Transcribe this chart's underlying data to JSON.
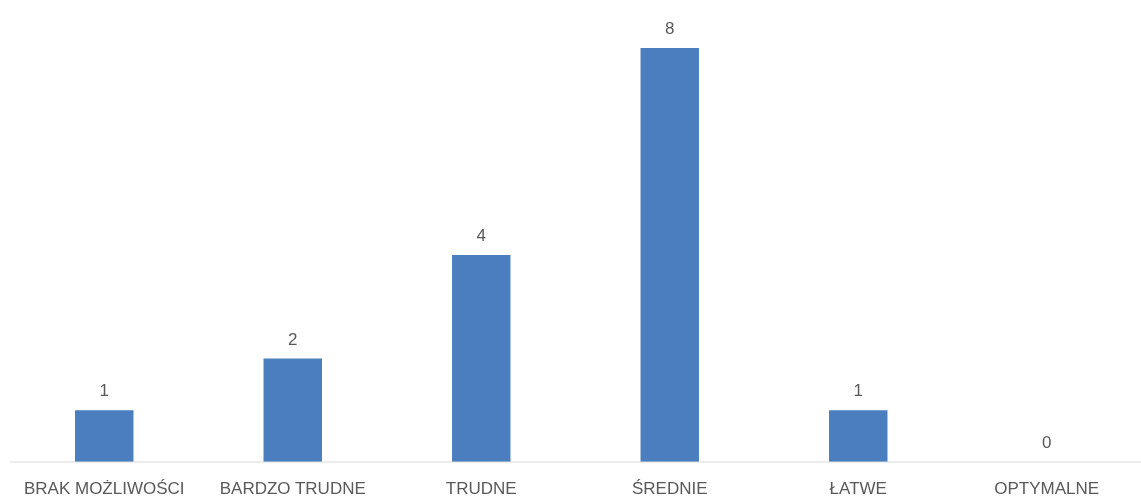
{
  "chart_data": {
    "type": "bar",
    "categories": [
      "BRAK MOŻLIWOŚCI",
      "BARDZO TRUDNE",
      "TRUDNE",
      "ŚREDNIE",
      "ŁATWE",
      "OPTYMALNE"
    ],
    "values": [
      1,
      2,
      4,
      8,
      1,
      0
    ],
    "color": "#4a7ebf",
    "data_labels": true
  }
}
